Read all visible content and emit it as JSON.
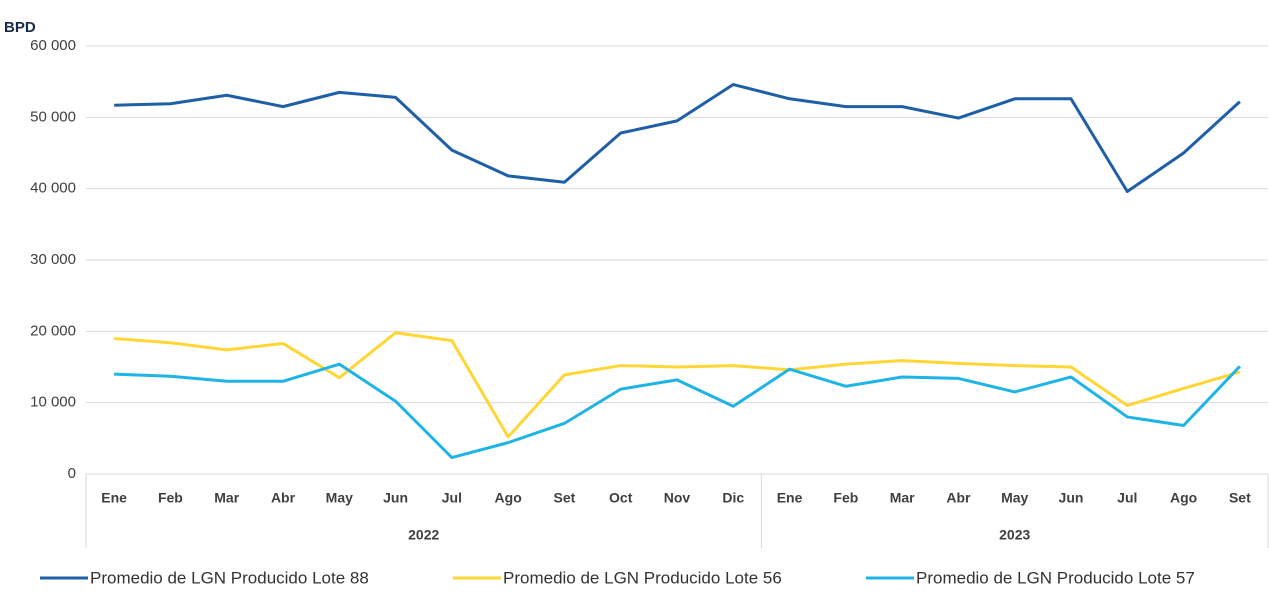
{
  "chart_data": {
    "type": "line",
    "y_label": "BPD",
    "categories": [
      "Ene",
      "Feb",
      "Mar",
      "Abr",
      "May",
      "Jun",
      "Jul",
      "Ago",
      "Set",
      "Oct",
      "Nov",
      "Dic",
      "Ene",
      "Feb",
      "Mar",
      "Abr",
      "May",
      "Jun",
      "Jul",
      "Ago",
      "Set"
    ],
    "groups": [
      {
        "label": "2022",
        "count": 12
      },
      {
        "label": "2023",
        "count": 9
      }
    ],
    "series": [
      {
        "name": "Promedio de LGN Producido Lote 88",
        "color": "#1f5fa8",
        "values": [
          51700,
          51900,
          53100,
          51500,
          53500,
          52800,
          45400,
          41800,
          40900,
          47800,
          49500,
          54600,
          52600,
          51500,
          51500,
          49900,
          52600,
          52600,
          39600,
          45000,
          52200
        ]
      },
      {
        "name": "Promedio de LGN Producido Lote 56",
        "color": "#ffd633",
        "values": [
          19000,
          18400,
          17400,
          18300,
          13500,
          19800,
          18700,
          5200,
          13900,
          15200,
          15000,
          15200,
          14600,
          15400,
          15900,
          15500,
          15200,
          15000,
          9600,
          12000,
          14300
        ]
      },
      {
        "name": "Promedio de LGN Producido Lote 57",
        "color": "#1fb4e6",
        "values": [
          14000,
          13700,
          13000,
          13000,
          15400,
          10200,
          2300,
          4400,
          7100,
          11900,
          13200,
          9500,
          14700,
          12300,
          13600,
          13400,
          11500,
          13600,
          8000,
          6800,
          15100
        ]
      }
    ],
    "ylim": [
      0,
      60000
    ],
    "yticks": [
      0,
      {
        "value": 10000,
        "label": "10 000"
      },
      {
        "value": 20000,
        "label": "20 000"
      },
      {
        "value": 30000,
        "label": "30 000"
      },
      {
        "value": 40000,
        "label": "40 000"
      },
      {
        "value": 50000,
        "label": "50 000"
      },
      {
        "value": 60000,
        "label": "60 000"
      }
    ],
    "grid": true,
    "legend": "bottom"
  }
}
